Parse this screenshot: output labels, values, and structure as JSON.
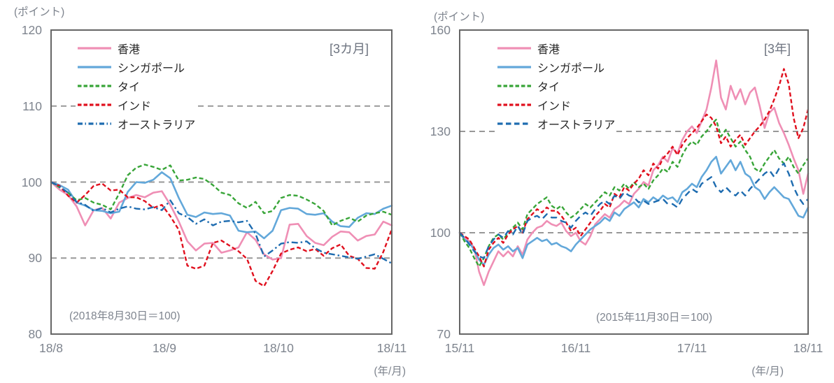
{
  "page": {
    "background": "#ffffff"
  },
  "colors": {
    "hong_kong": "#ef8fb5",
    "singapore": "#63a8da",
    "thailand": "#38a538",
    "india": "#e0101e",
    "australia": "#1e6cb0",
    "gridline": "#989898",
    "border": "#666666",
    "axis_text": "#7e848e",
    "legend_text": "#262626"
  },
  "chart_data": [
    {
      "type": "line",
      "title": "[3カ月]",
      "unit_label": "(ポイント)",
      "note": "(2018年8月30日＝100)",
      "x_axis_unit": "(年/月)",
      "x_tick_labels": [
        "18/8",
        "18/9",
        "18/10",
        "18/11"
      ],
      "ylim": [
        80,
        120
      ],
      "y_ticks": [
        120,
        110,
        100,
        90,
        80
      ],
      "gridlines": [
        110,
        100,
        90
      ],
      "grid": "dashed-horizontal",
      "legend_position": "top-left-inside",
      "series": [
        {
          "id": "hong-kong",
          "name": "香港",
          "color": "#ef8fb5",
          "style": "solid",
          "values": [
            100,
            99,
            98.3,
            96.8,
            94.3,
            96.3,
            96.6,
            95.2,
            97.3,
            97.9,
            98.3,
            98,
            98.6,
            98.8,
            97,
            94.8,
            92.2,
            91,
            91.9,
            92,
            90.7,
            91,
            91.4,
            93.4,
            92.4,
            90.5,
            89.8,
            90,
            94.4,
            94.5,
            92.9,
            92,
            91.7,
            92.8,
            93.5,
            93.4,
            92.3,
            92.9,
            93.1,
            94.8,
            94.3
          ]
        },
        {
          "id": "singapore",
          "name": "シンガポール",
          "color": "#63a8da",
          "style": "solid",
          "values": [
            100,
            99.6,
            99,
            97.3,
            96.9,
            96.3,
            96.2,
            95.9,
            96.1,
            98.7,
            100,
            99.9,
            100.3,
            101.3,
            100.5,
            97.9,
            95.7,
            95.4,
            96,
            95.8,
            95.9,
            95.6,
            93.6,
            93.4,
            93.5,
            92.6,
            93.6,
            96.3,
            96.6,
            96.5,
            95.8,
            95.7,
            95.9,
            94.8,
            94.2,
            94.1,
            95.3,
            95.9,
            95.8,
            96.5,
            96.9
          ]
        },
        {
          "id": "thailand",
          "name": "タイ",
          "color": "#38a538",
          "style": "dashed",
          "values": [
            100,
            99.3,
            98.6,
            97.6,
            97.9,
            97.3,
            97,
            96.4,
            98.5,
            100.9,
            101.9,
            102.3,
            102,
            101.6,
            102.2,
            100.2,
            100.3,
            100.6,
            100.4,
            99.6,
            98.6,
            98.3,
            97.2,
            96.6,
            97.4,
            95.9,
            96.2,
            97.9,
            98.3,
            98.2,
            97.7,
            97.1,
            96.2,
            94.3,
            94.9,
            95.3,
            94.8,
            95.6,
            95.9,
            96.1,
            95.7
          ]
        },
        {
          "id": "india",
          "name": "インド",
          "color": "#e0101e",
          "style": "dashed",
          "values": [
            100,
            99.5,
            98.2,
            97.3,
            98.3,
            99.5,
            99.8,
            98.9,
            99,
            98,
            98,
            97.5,
            96.6,
            97,
            95.5,
            93.7,
            89,
            88.6,
            89,
            92,
            92.3,
            91.6,
            90.9,
            89.9,
            87,
            86.3,
            88.3,
            90.6,
            91.1,
            91.4,
            90.9,
            91.2,
            90.3,
            91.3,
            91.8,
            90.3,
            89.9,
            88.7,
            88.6,
            90.8,
            93.8
          ]
        },
        {
          "id": "australia",
          "name": "オーストラリア",
          "color": "#1e6cb0",
          "style": "dash-dot",
          "values": [
            100,
            99.4,
            98.6,
            97.4,
            97,
            96.2,
            96.6,
            96,
            96.5,
            96.8,
            96.5,
            96.4,
            96.7,
            96.3,
            97.6,
            95.9,
            95.4,
            94.5,
            95.1,
            94.3,
            94.8,
            94.9,
            94.7,
            94.9,
            93.2,
            90.2,
            91,
            91.9,
            92.1,
            92,
            92.2,
            91.3,
            90.7,
            90.5,
            90.3,
            90.1,
            89.9,
            90.2,
            90.5,
            89.9,
            89.3
          ]
        }
      ]
    },
    {
      "type": "line",
      "title": "[3年]",
      "unit_label": "(ポイント)",
      "note": "(2015年11月30日＝100)",
      "x_axis_unit": "(年/月)",
      "x_tick_labels": [
        "15/11",
        "16/11",
        "17/11",
        "18/11"
      ],
      "ylim": [
        70,
        160
      ],
      "y_ticks": [
        160,
        130,
        100,
        70
      ],
      "gridlines": [
        130,
        100
      ],
      "grid": "dashed-horizontal",
      "legend_position": "top-left-inside",
      "series": [
        {
          "id": "hong-kong",
          "name": "香港",
          "color": "#ef8fb5",
          "style": "solid",
          "values": [
            100,
            98.5,
            97.5,
            95.5,
            88.5,
            84.5,
            88.5,
            91.5,
            94.5,
            93,
            94.5,
            93,
            96,
            93.5,
            98,
            100,
            101.5,
            102,
            103.5,
            102.5,
            102,
            103,
            100.5,
            99,
            100,
            97.5,
            96.5,
            99,
            102.5,
            104,
            105.5,
            104.5,
            107,
            108,
            109.5,
            108.5,
            111.5,
            113,
            115,
            114,
            118.5,
            120,
            122.5,
            121,
            125,
            123.5,
            127.5,
            130,
            131.5,
            129.5,
            133,
            136.5,
            143,
            151,
            140,
            136.5,
            143.5,
            139.5,
            142.5,
            138,
            141.5,
            143,
            137.5,
            131,
            135.5,
            137,
            132.5,
            129.5,
            126,
            122,
            118.5,
            111.5,
            117.5
          ]
        },
        {
          "id": "singapore",
          "name": "シンガポール",
          "color": "#63a8da",
          "style": "solid",
          "values": [
            100,
            98,
            97,
            95,
            92,
            90.5,
            93.5,
            95.5,
            96.5,
            95,
            96,
            94.5,
            95.5,
            92.5,
            96.5,
            97.5,
            98.5,
            97.5,
            98,
            96.5,
            97,
            96,
            95.5,
            94.5,
            96.5,
            98,
            99.5,
            101,
            102,
            103,
            104.5,
            103.5,
            106,
            105,
            107,
            108,
            109,
            107.5,
            110,
            109,
            110.5,
            109.5,
            111,
            110,
            110.5,
            109,
            112,
            113,
            114.5,
            113.5,
            116.5,
            118.5,
            121,
            122.5,
            117.5,
            119.5,
            121.5,
            118.5,
            121,
            117.5,
            116.5,
            113.5,
            112.5,
            110,
            112,
            113.5,
            112,
            110.5,
            110,
            107.5,
            105,
            104.5,
            107.5
          ]
        },
        {
          "id": "thailand",
          "name": "タイ",
          "color": "#38a538",
          "style": "dashed",
          "values": [
            100,
            97.5,
            95.5,
            92.5,
            90,
            92.5,
            96,
            98.5,
            99.5,
            98,
            100,
            101.5,
            103,
            101,
            105.5,
            107,
            108.5,
            109.5,
            110.5,
            108,
            107,
            108,
            106,
            104.5,
            105.5,
            107,
            108.5,
            107.5,
            109,
            110.5,
            112,
            111,
            113.5,
            112.5,
            114.5,
            113,
            115,
            113.5,
            114.5,
            113,
            115.5,
            117,
            119,
            118,
            121,
            119.5,
            123,
            125.5,
            127,
            126,
            128.5,
            130,
            132,
            133.5,
            128.5,
            130.5,
            128,
            125.5,
            127,
            124.5,
            122.5,
            119,
            118,
            120.5,
            122.5,
            124.5,
            122,
            120.5,
            122.5,
            119.5,
            117.5,
            120,
            122
          ]
        },
        {
          "id": "india",
          "name": "インド",
          "color": "#e0101e",
          "style": "dashed",
          "values": [
            100,
            99,
            98,
            95.5,
            93,
            90,
            95,
            97,
            98.5,
            97,
            99.5,
            101,
            102,
            100,
            104,
            105.5,
            107,
            106,
            107.5,
            106.5,
            106.5,
            105,
            103,
            100.5,
            101.5,
            99,
            101,
            103,
            105,
            106.5,
            108.5,
            107.5,
            111.5,
            110.5,
            113.5,
            112.5,
            114.5,
            116,
            118.5,
            117,
            120.5,
            119,
            122,
            123.5,
            125.5,
            123,
            126,
            128,
            129.5,
            131,
            133,
            135,
            134,
            131.5,
            126.5,
            128.5,
            125.5,
            127.5,
            129,
            126,
            128,
            130,
            131.5,
            133.5,
            136,
            139.5,
            143.5,
            148.5,
            144,
            134,
            128,
            131,
            136.5
          ]
        },
        {
          "id": "australia",
          "name": "オーストラリア",
          "color": "#1e6cb0",
          "style": "long-dashed",
          "values": [
            100,
            98.5,
            96.5,
            94.5,
            93,
            92.5,
            96,
            98,
            99.5,
            98.5,
            100.5,
            99.5,
            102,
            99.5,
            103.5,
            104.5,
            105,
            104,
            105.5,
            104.5,
            104.5,
            103.5,
            103,
            101.5,
            103.5,
            105,
            106,
            105,
            107,
            108.5,
            109.5,
            108.5,
            111,
            110,
            112,
            111,
            110.5,
            109,
            109.5,
            108.5,
            109,
            109.5,
            110,
            108.5,
            108.5,
            107.5,
            110,
            111.5,
            113,
            112,
            114.5,
            115.5,
            116.5,
            113.5,
            112,
            113.5,
            112,
            111,
            112.5,
            111,
            113,
            114.5,
            116,
            117.5,
            118.5,
            116.5,
            119,
            120.5,
            117.5,
            113.5,
            110.5,
            108.5,
            110
          ]
        }
      ]
    }
  ]
}
